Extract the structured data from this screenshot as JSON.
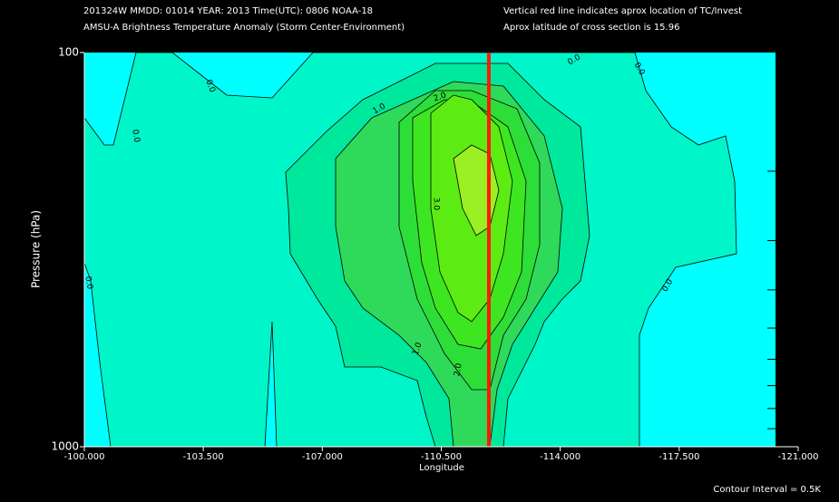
{
  "chart_data": {
    "type": "contour",
    "title_lines": [
      "201324W  MMDD: 01014 YEAR: 2013 Time(UTC): 0806 NOAA-18",
      "AMSU-A Brightness Temperature Anomaly (Storm Center-Environment)"
    ],
    "notes": [
      "Vertical red line indicates aprox location of TC/Invest",
      "Aprox latitude of cross section is 15.96"
    ],
    "x_label": "Longitude",
    "y_label": "Pressure (hPa)",
    "footer": "Contour Interval = 0.5K",
    "xlim": [
      -100,
      -121
    ],
    "xticks": [
      {
        "value": -100,
        "label": "-100.000"
      },
      {
        "value": -103.5,
        "label": "-103.500"
      },
      {
        "value": -107,
        "label": "-107.000"
      },
      {
        "value": -110.5,
        "label": "-110.500"
      },
      {
        "value": -114,
        "label": "-114.000"
      },
      {
        "value": -117.5,
        "label": "-117.500"
      },
      {
        "value": -121,
        "label": "-121.000"
      }
    ],
    "ylim": [
      100,
      1000
    ],
    "y_log": true,
    "y_inverted": true,
    "yticks": [
      100,
      1000
    ],
    "minor_yticks": [
      200,
      300,
      400,
      500,
      600,
      700,
      800,
      900
    ],
    "below_color": "#00ffff",
    "levels": [
      {
        "value": 0,
        "color": "#00f5c8"
      },
      {
        "value": 0.5,
        "color": "#00e89c"
      },
      {
        "value": 1.0,
        "color": "#2fd95a"
      },
      {
        "value": 1.5,
        "color": "#2ede38"
      },
      {
        "value": 2.0,
        "color": "#3ee622"
      },
      {
        "value": 2.5,
        "color": "#5cec14"
      },
      {
        "value": 3.0,
        "color": "#9af022"
      }
    ],
    "marker_x": -111.9,
    "marker_color": "#ff1a00",
    "contour_labels": [
      "0.0",
      "0.0",
      "0.0",
      "0.0",
      "0.0",
      "0.0",
      "1.0",
      "1.0",
      "2.0",
      "2.0",
      "3.0"
    ]
  }
}
